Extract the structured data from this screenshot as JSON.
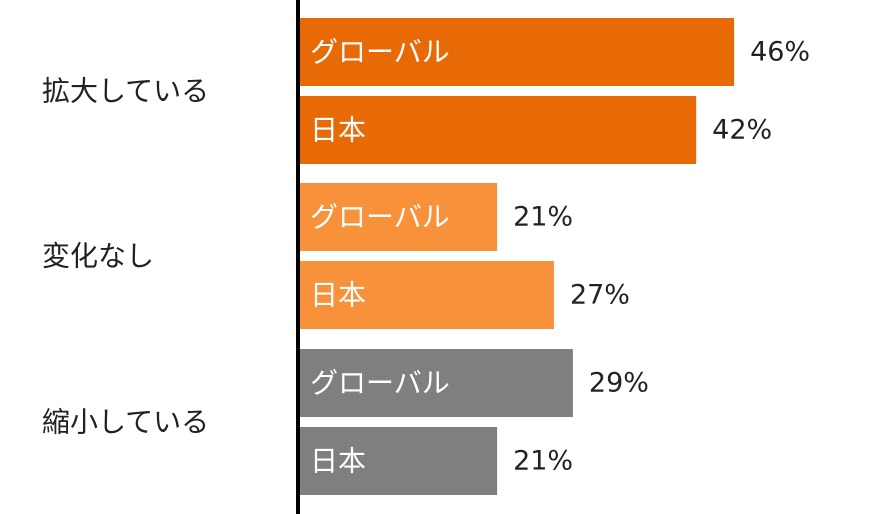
{
  "chart_data": {
    "type": "bar",
    "orientation": "horizontal",
    "categories": [
      "拡大している",
      "変化なし",
      "縮小している"
    ],
    "series_labels": [
      "グローバル",
      "日本"
    ],
    "groups": [
      {
        "category": "拡大している",
        "color": "#E86A06",
        "bars": [
          {
            "label": "グローバル",
            "value": 46,
            "value_label": "46%"
          },
          {
            "label": "日本",
            "value": 42,
            "value_label": "42%"
          }
        ]
      },
      {
        "category": "変化なし",
        "color": "#F7913A",
        "bars": [
          {
            "label": "グローバル",
            "value": 21,
            "value_label": "21%"
          },
          {
            "label": "日本",
            "value": 27,
            "value_label": "27%"
          }
        ]
      },
      {
        "category": "縮小している",
        "color": "#7F7F7F",
        "bars": [
          {
            "label": "グローバル",
            "value": 29,
            "value_label": "29%"
          },
          {
            "label": "日本",
            "value": 21,
            "value_label": "21%"
          }
        ]
      }
    ],
    "xlim": [
      0,
      50
    ],
    "grid": false,
    "axis_line_color": "#000000"
  }
}
